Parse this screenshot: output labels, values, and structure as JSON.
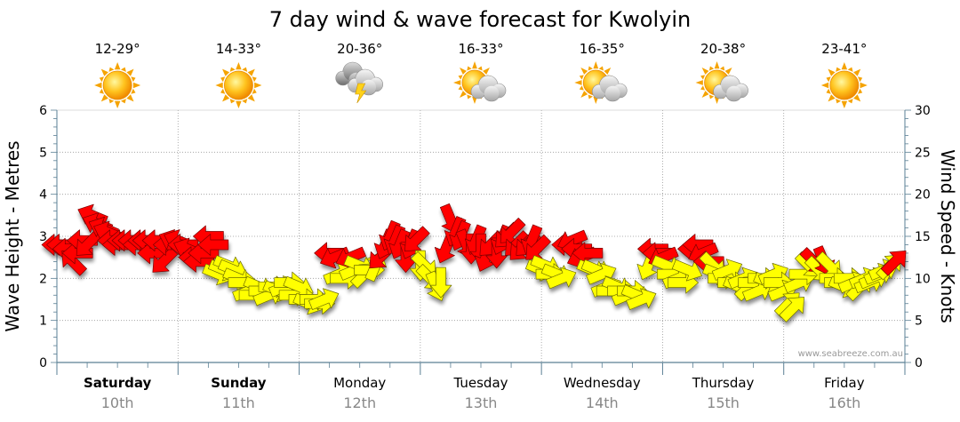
{
  "chart_data": {
    "type": "scatter",
    "title": "7 day wind & wave forecast for Kwolyin",
    "ylabel_left": "Wave Height - Metres",
    "ylabel_right": "Wind Speed - Knots",
    "ylim_left": [
      0,
      6
    ],
    "ylim_right": [
      0,
      30
    ],
    "yticks_left": [
      "0",
      "1",
      "2",
      "3",
      "4",
      "5",
      "6"
    ],
    "yticks_right": [
      "0",
      "5",
      "10",
      "15",
      "20",
      "25",
      "30"
    ],
    "grid": true,
    "watermark": "www.seabreeze.com.au",
    "days": [
      {
        "name": "Saturday",
        "date": "10th",
        "temp": "12-29°",
        "icon": "sun-icon",
        "bold": true
      },
      {
        "name": "Sunday",
        "date": "11th",
        "temp": "14-33°",
        "icon": "sun-icon",
        "bold": true
      },
      {
        "name": "Monday",
        "date": "12th",
        "temp": "20-36°",
        "icon": "storm-cloud-icon",
        "bold": false
      },
      {
        "name": "Tuesday",
        "date": "13th",
        "temp": "16-33°",
        "icon": "sun-cloud-icon",
        "bold": false
      },
      {
        "name": "Wednesday",
        "date": "14th",
        "temp": "16-35°",
        "icon": "sun-cloud-icon",
        "bold": false
      },
      {
        "name": "Thursday",
        "date": "15th",
        "temp": "20-38°",
        "icon": "sun-cloud-icon",
        "bold": false
      },
      {
        "name": "Friday",
        "date": "16th",
        "temp": "23-41°",
        "icon": "sun-icon",
        "bold": false
      }
    ],
    "series": [
      {
        "name": "Wind Speed - Knots",
        "unit": "knots",
        "legend_colors": {
          "under_12_knots": "#ffff00",
          "12_knots_and_over": "#ff0000"
        },
        "points": [
          {
            "t": 0.0,
            "kn": 14.0,
            "dir": "E"
          },
          {
            "t": 0.04,
            "kn": 14.0,
            "dir": "E"
          },
          {
            "t": 0.09,
            "kn": 13.5,
            "dir": "E"
          },
          {
            "t": 0.13,
            "kn": 12.0,
            "dir": "SE"
          },
          {
            "t": 0.17,
            "kn": 13.0,
            "dir": "E"
          },
          {
            "t": 0.21,
            "kn": 14.5,
            "dir": "E"
          },
          {
            "t": 0.25,
            "kn": 14.0,
            "dir": "NE"
          },
          {
            "t": 0.29,
            "kn": 17.5,
            "dir": "ESE"
          },
          {
            "t": 0.33,
            "kn": 16.5,
            "dir": "ESE"
          },
          {
            "t": 0.38,
            "kn": 16.0,
            "dir": "ESE"
          },
          {
            "t": 0.42,
            "kn": 15.5,
            "dir": "ESE"
          },
          {
            "t": 0.46,
            "kn": 14.5,
            "dir": "E"
          },
          {
            "t": 0.5,
            "kn": 14.0,
            "dir": "E"
          },
          {
            "t": 0.54,
            "kn": 14.5,
            "dir": "E"
          },
          {
            "t": 0.58,
            "kn": 14.5,
            "dir": "E"
          },
          {
            "t": 0.63,
            "kn": 14.5,
            "dir": "E"
          },
          {
            "t": 0.67,
            "kn": 14.0,
            "dir": "E"
          },
          {
            "t": 0.71,
            "kn": 14.5,
            "dir": "E"
          },
          {
            "t": 0.75,
            "kn": 14.5,
            "dir": "E"
          },
          {
            "t": 0.79,
            "kn": 13.0,
            "dir": "E"
          },
          {
            "t": 0.83,
            "kn": 14.5,
            "dir": "E"
          },
          {
            "t": 0.88,
            "kn": 12.0,
            "dir": "NE"
          },
          {
            "t": 0.92,
            "kn": 14.0,
            "dir": "E"
          },
          {
            "t": 0.96,
            "kn": 14.5,
            "dir": "ESE"
          },
          {
            "t": 1.0,
            "kn": 14.5,
            "dir": "ESE"
          },
          {
            "t": 1.04,
            "kn": 14.0,
            "dir": "E"
          },
          {
            "t": 1.08,
            "kn": 13.5,
            "dir": "ESE"
          },
          {
            "t": 1.13,
            "kn": 12.5,
            "dir": "E"
          },
          {
            "t": 1.17,
            "kn": 12.0,
            "dir": "E"
          },
          {
            "t": 1.21,
            "kn": 13.0,
            "dir": "E"
          },
          {
            "t": 1.25,
            "kn": 15.0,
            "dir": "E"
          },
          {
            "t": 1.29,
            "kn": 14.0,
            "dir": "E"
          },
          {
            "t": 1.33,
            "kn": 10.5,
            "dir": "WNW"
          },
          {
            "t": 1.38,
            "kn": 11.0,
            "dir": "WNW"
          },
          {
            "t": 1.42,
            "kn": 11.5,
            "dir": "WNW"
          },
          {
            "t": 1.46,
            "kn": 11.0,
            "dir": "WNW"
          },
          {
            "t": 1.5,
            "kn": 10.0,
            "dir": "WNW"
          },
          {
            "t": 1.54,
            "kn": 9.5,
            "dir": "W"
          },
          {
            "t": 1.58,
            "kn": 8.5,
            "dir": "WSW"
          },
          {
            "t": 1.63,
            "kn": 8.0,
            "dir": "W"
          },
          {
            "t": 1.67,
            "kn": 9.0,
            "dir": "WNW"
          },
          {
            "t": 1.71,
            "kn": 8.5,
            "dir": "W"
          },
          {
            "t": 1.75,
            "kn": 8.0,
            "dir": "WSW"
          },
          {
            "t": 1.79,
            "kn": 9.0,
            "dir": "W"
          },
          {
            "t": 1.83,
            "kn": 8.5,
            "dir": "WNW"
          },
          {
            "t": 1.88,
            "kn": 9.0,
            "dir": "WSW"
          },
          {
            "t": 1.92,
            "kn": 9.5,
            "dir": "W"
          },
          {
            "t": 1.96,
            "kn": 8.0,
            "dir": "W"
          },
          {
            "t": 2.0,
            "kn": 9.0,
            "dir": "WNW"
          },
          {
            "t": 2.04,
            "kn": 7.5,
            "dir": "W"
          },
          {
            "t": 2.08,
            "kn": 7.0,
            "dir": "WNW"
          },
          {
            "t": 2.13,
            "kn": 7.5,
            "dir": "W"
          },
          {
            "t": 2.17,
            "kn": 7.0,
            "dir": "W"
          },
          {
            "t": 2.21,
            "kn": 7.5,
            "dir": "WSW"
          },
          {
            "t": 2.25,
            "kn": 13.0,
            "dir": "E"
          },
          {
            "t": 2.29,
            "kn": 12.5,
            "dir": "ENE"
          },
          {
            "t": 2.33,
            "kn": 10.5,
            "dir": "WSW"
          },
          {
            "t": 2.38,
            "kn": 10.0,
            "dir": "W"
          },
          {
            "t": 2.42,
            "kn": 12.5,
            "dir": "ENE"
          },
          {
            "t": 2.46,
            "kn": 11.0,
            "dir": "WSW"
          },
          {
            "t": 2.5,
            "kn": 11.5,
            "dir": "WNW"
          },
          {
            "t": 2.54,
            "kn": 10.5,
            "dir": "SW"
          },
          {
            "t": 2.58,
            "kn": 11.0,
            "dir": "W"
          },
          {
            "t": 2.63,
            "kn": 11.5,
            "dir": "SSW"
          },
          {
            "t": 2.67,
            "kn": 12.5,
            "dir": "NE"
          },
          {
            "t": 2.71,
            "kn": 14.0,
            "dir": "NNE"
          },
          {
            "t": 2.75,
            "kn": 15.0,
            "dir": "NNE"
          },
          {
            "t": 2.79,
            "kn": 14.5,
            "dir": "NNE"
          },
          {
            "t": 2.83,
            "kn": 14.0,
            "dir": "NNE"
          },
          {
            "t": 2.88,
            "kn": 12.5,
            "dir": "N"
          },
          {
            "t": 2.92,
            "kn": 14.0,
            "dir": "NNE"
          },
          {
            "t": 2.96,
            "kn": 14.5,
            "dir": "NE"
          },
          {
            "t": 3.0,
            "kn": 11.5,
            "dir": "N"
          },
          {
            "t": 3.04,
            "kn": 11.5,
            "dir": "NW"
          },
          {
            "t": 3.08,
            "kn": 10.0,
            "dir": "NW"
          },
          {
            "t": 3.13,
            "kn": 9.0,
            "dir": "NNW"
          },
          {
            "t": 3.17,
            "kn": 9.5,
            "dir": "N"
          },
          {
            "t": 3.21,
            "kn": 13.5,
            "dir": "NNE"
          },
          {
            "t": 3.25,
            "kn": 17.0,
            "dir": "NNW"
          },
          {
            "t": 3.29,
            "kn": 15.5,
            "dir": "NNE"
          },
          {
            "t": 3.33,
            "kn": 15.0,
            "dir": "NNE"
          },
          {
            "t": 3.38,
            "kn": 14.0,
            "dir": "NNW"
          },
          {
            "t": 3.42,
            "kn": 13.5,
            "dir": "N"
          },
          {
            "t": 3.46,
            "kn": 14.5,
            "dir": "NNE"
          },
          {
            "t": 3.5,
            "kn": 13.5,
            "dir": "N"
          },
          {
            "t": 3.54,
            "kn": 12.5,
            "dir": "NNE"
          },
          {
            "t": 3.58,
            "kn": 14.0,
            "dir": "NE"
          },
          {
            "t": 3.63,
            "kn": 13.0,
            "dir": "N"
          },
          {
            "t": 3.67,
            "kn": 14.5,
            "dir": "NNE"
          },
          {
            "t": 3.71,
            "kn": 15.0,
            "dir": "NE"
          },
          {
            "t": 3.75,
            "kn": 15.5,
            "dir": "NE"
          },
          {
            "t": 3.79,
            "kn": 14.0,
            "dir": "NE"
          },
          {
            "t": 3.83,
            "kn": 13.5,
            "dir": "NE"
          },
          {
            "t": 3.88,
            "kn": 14.0,
            "dir": "NE"
          },
          {
            "t": 3.92,
            "kn": 14.5,
            "dir": "NNE"
          },
          {
            "t": 3.96,
            "kn": 13.5,
            "dir": "NE"
          },
          {
            "t": 4.0,
            "kn": 11.0,
            "dir": "WNW"
          },
          {
            "t": 4.04,
            "kn": 11.5,
            "dir": "WNW"
          },
          {
            "t": 4.08,
            "kn": 10.5,
            "dir": "W"
          },
          {
            "t": 4.13,
            "kn": 10.5,
            "dir": "WNW"
          },
          {
            "t": 4.17,
            "kn": 10.0,
            "dir": "WSW"
          },
          {
            "t": 4.21,
            "kn": 14.0,
            "dir": "E"
          },
          {
            "t": 4.25,
            "kn": 14.5,
            "dir": "ENE"
          },
          {
            "t": 4.29,
            "kn": 13.5,
            "dir": "E"
          },
          {
            "t": 4.33,
            "kn": 12.5,
            "dir": "ENE"
          },
          {
            "t": 4.38,
            "kn": 13.0,
            "dir": "E"
          },
          {
            "t": 4.42,
            "kn": 11.0,
            "dir": "WNW"
          },
          {
            "t": 4.46,
            "kn": 11.0,
            "dir": "WNW"
          },
          {
            "t": 4.5,
            "kn": 10.5,
            "dir": "WSW"
          },
          {
            "t": 4.54,
            "kn": 9.0,
            "dir": "WSW"
          },
          {
            "t": 4.58,
            "kn": 8.5,
            "dir": "W"
          },
          {
            "t": 4.63,
            "kn": 9.0,
            "dir": "WNW"
          },
          {
            "t": 4.67,
            "kn": 8.5,
            "dir": "W"
          },
          {
            "t": 4.71,
            "kn": 8.0,
            "dir": "WSW"
          },
          {
            "t": 4.75,
            "kn": 8.5,
            "dir": "W"
          },
          {
            "t": 4.79,
            "kn": 8.0,
            "dir": "WNW"
          },
          {
            "t": 4.83,
            "kn": 7.5,
            "dir": "WSW"
          },
          {
            "t": 4.88,
            "kn": 11.5,
            "dir": "NNE"
          },
          {
            "t": 4.92,
            "kn": 13.5,
            "dir": "E"
          },
          {
            "t": 4.96,
            "kn": 13.0,
            "dir": "E"
          },
          {
            "t": 5.0,
            "kn": 12.5,
            "dir": "ENE"
          },
          {
            "t": 5.04,
            "kn": 11.5,
            "dir": "WNW"
          },
          {
            "t": 5.08,
            "kn": 10.5,
            "dir": "W"
          },
          {
            "t": 5.13,
            "kn": 10.0,
            "dir": "WSW"
          },
          {
            "t": 5.17,
            "kn": 9.5,
            "dir": "W"
          },
          {
            "t": 5.21,
            "kn": 11.0,
            "dir": "WNW"
          },
          {
            "t": 5.25,
            "kn": 13.5,
            "dir": "E"
          },
          {
            "t": 5.29,
            "kn": 14.0,
            "dir": "E"
          },
          {
            "t": 5.33,
            "kn": 13.0,
            "dir": "ENE"
          },
          {
            "t": 5.38,
            "kn": 12.0,
            "dir": "E"
          },
          {
            "t": 5.42,
            "kn": 11.5,
            "dir": "NW"
          },
          {
            "t": 5.46,
            "kn": 10.5,
            "dir": "WNW"
          },
          {
            "t": 5.5,
            "kn": 10.0,
            "dir": "W"
          },
          {
            "t": 5.54,
            "kn": 11.0,
            "dir": "WSW"
          },
          {
            "t": 5.58,
            "kn": 9.5,
            "dir": "W"
          },
          {
            "t": 5.63,
            "kn": 9.0,
            "dir": "WNW"
          },
          {
            "t": 5.67,
            "kn": 10.0,
            "dir": "WSW"
          },
          {
            "t": 5.71,
            "kn": 9.0,
            "dir": "SW"
          },
          {
            "t": 5.75,
            "kn": 9.5,
            "dir": "W"
          },
          {
            "t": 5.79,
            "kn": 8.5,
            "dir": "WSW"
          },
          {
            "t": 5.83,
            "kn": 10.0,
            "dir": "W"
          },
          {
            "t": 5.88,
            "kn": 9.5,
            "dir": "WNW"
          },
          {
            "t": 5.92,
            "kn": 10.5,
            "dir": "WSW"
          },
          {
            "t": 5.96,
            "kn": 9.5,
            "dir": "W"
          },
          {
            "t": 6.0,
            "kn": 8.5,
            "dir": "WSW"
          },
          {
            "t": 6.04,
            "kn": 7.0,
            "dir": "SW"
          },
          {
            "t": 6.08,
            "kn": 6.5,
            "dir": "SW"
          },
          {
            "t": 6.13,
            "kn": 9.5,
            "dir": "WSW"
          },
          {
            "t": 6.17,
            "kn": 10.5,
            "dir": "W"
          },
          {
            "t": 6.21,
            "kn": 11.5,
            "dir": "NW"
          },
          {
            "t": 6.25,
            "kn": 12.0,
            "dir": "NW"
          },
          {
            "t": 6.29,
            "kn": 11.0,
            "dir": "NW"
          },
          {
            "t": 6.33,
            "kn": 12.0,
            "dir": "NNW"
          },
          {
            "t": 6.38,
            "kn": 11.5,
            "dir": "NW"
          },
          {
            "t": 6.42,
            "kn": 10.0,
            "dir": "W"
          },
          {
            "t": 6.46,
            "kn": 9.5,
            "dir": "W"
          },
          {
            "t": 6.5,
            "kn": 9.0,
            "dir": "WNW"
          },
          {
            "t": 6.54,
            "kn": 10.0,
            "dir": "W"
          },
          {
            "t": 6.58,
            "kn": 9.5,
            "dir": "WSW"
          },
          {
            "t": 6.63,
            "kn": 9.0,
            "dir": "SW"
          },
          {
            "t": 6.67,
            "kn": 10.0,
            "dir": "WSW"
          },
          {
            "t": 6.71,
            "kn": 9.5,
            "dir": "WSW"
          },
          {
            "t": 6.75,
            "kn": 10.0,
            "dir": "WSW"
          },
          {
            "t": 6.79,
            "kn": 10.5,
            "dir": "WSW"
          },
          {
            "t": 6.83,
            "kn": 11.0,
            "dir": "WSW"
          },
          {
            "t": 6.88,
            "kn": 11.5,
            "dir": "SW"
          },
          {
            "t": 6.92,
            "kn": 12.0,
            "dir": "SW"
          }
        ]
      },
      {
        "name": "Wave Height - Metres",
        "unit": "m",
        "values": []
      }
    ]
  }
}
